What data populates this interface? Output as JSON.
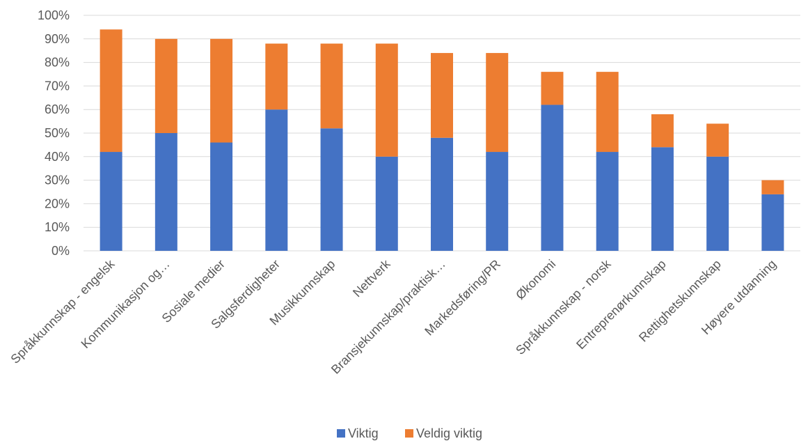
{
  "chart_data": {
    "type": "bar",
    "stacked": true,
    "categories": [
      "Språkkunnskap - engelsk",
      "Kommunikasjon og…",
      "Sosiale medier",
      "Salgsferdigheter",
      "Musikkunnskap",
      "Nettverk",
      "Bransjekunnskap/praktisk…",
      "Markedsføring/PR",
      "Økonomi",
      "Språkkunnskap - norsk",
      "Entreprenørkunnskap",
      "Rettighetskunnskap",
      "Høyere utdanning"
    ],
    "series": [
      {
        "name": "Viktig",
        "color": "#4472c4",
        "values": [
          42,
          50,
          46,
          60,
          52,
          40,
          48,
          42,
          62,
          42,
          44,
          40,
          24
        ]
      },
      {
        "name": "Veldig viktig",
        "color": "#ed7d31",
        "values": [
          52,
          40,
          44,
          28,
          36,
          48,
          36,
          42,
          14,
          34,
          14,
          14,
          6
        ]
      }
    ],
    "y_ticks": [
      "0%",
      "10%",
      "20%",
      "30%",
      "40%",
      "50%",
      "60%",
      "70%",
      "80%",
      "90%",
      "100%"
    ],
    "ylim": [
      0,
      100
    ],
    "grid": true,
    "legend": "bottom-center",
    "title": "",
    "xlabel": "",
    "ylabel": ""
  }
}
